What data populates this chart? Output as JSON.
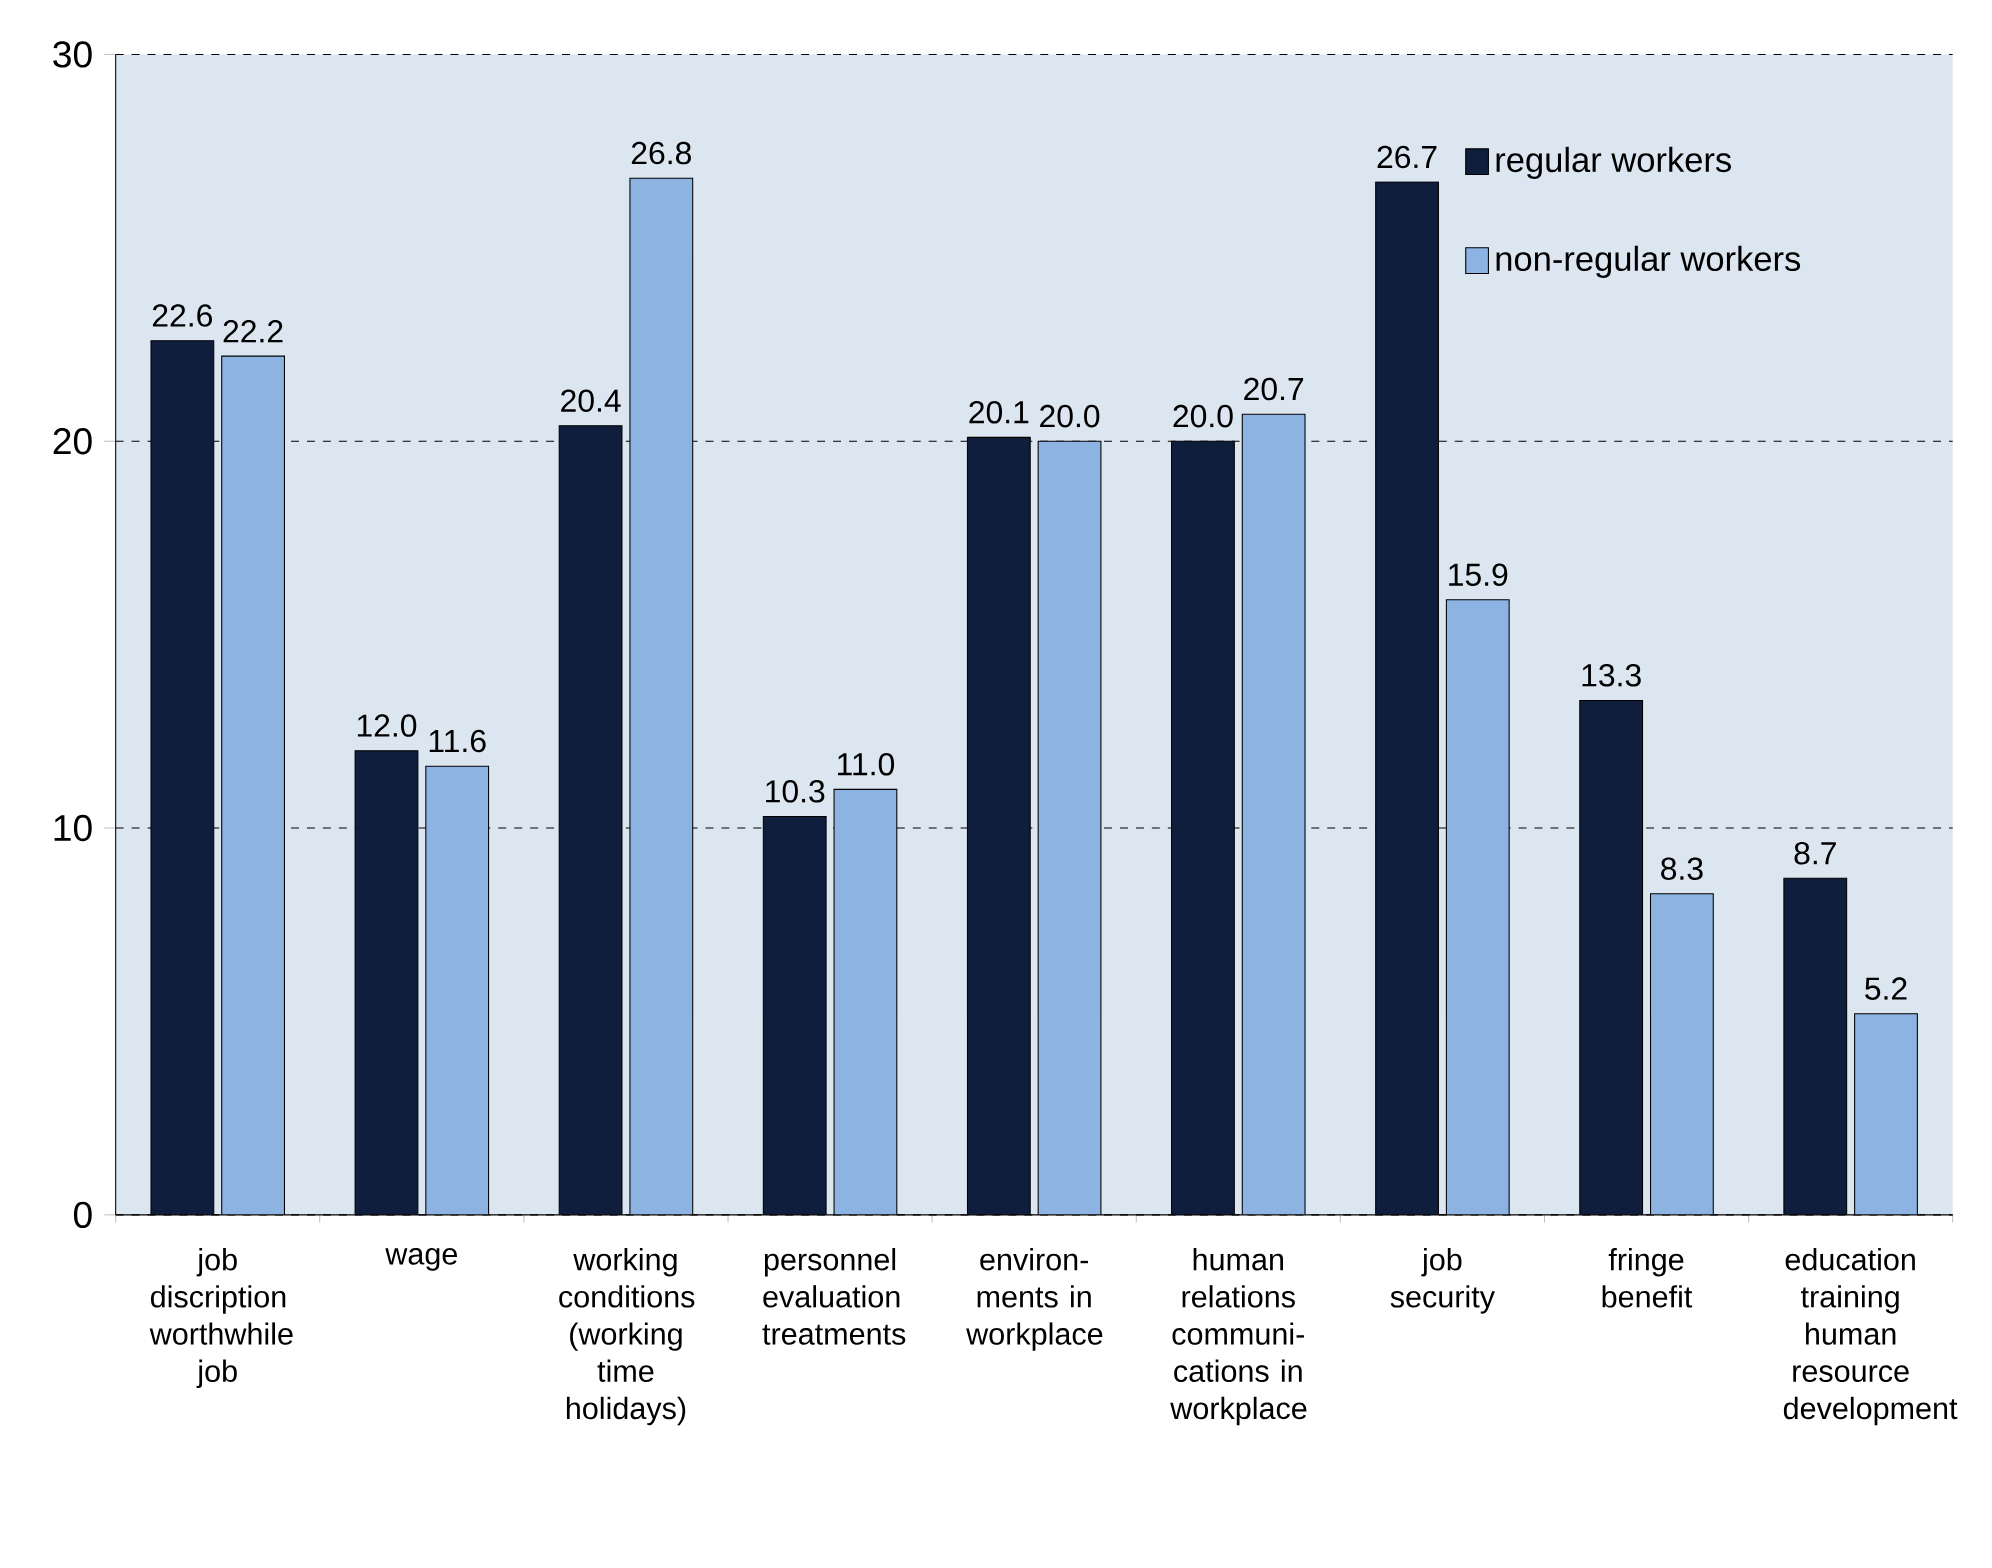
{
  "chart_data": {
    "type": "bar",
    "categories": [
      "job discription worthwhile job",
      "wage",
      "working conditions (working time holidays)",
      "personnel evaluation treatments",
      "environ-ments in workplace",
      "human relations communi-cations in workplace",
      "job security",
      "fringe benefit",
      "education training human resource development"
    ],
    "series": [
      {
        "name": "regular workers",
        "color": "#0f1e3c",
        "values": [
          22.6,
          12.0,
          20.4,
          10.3,
          20.1,
          20.0,
          26.7,
          13.3,
          8.7
        ],
        "value_labels": [
          "22.6",
          "12.0",
          "20.4",
          "10.3",
          "20.1",
          "20.0",
          "26.7",
          "13.3",
          "8.7"
        ]
      },
      {
        "name": "non-regular workers",
        "color": "#8db3e2",
        "values": [
          22.2,
          11.6,
          26.8,
          11.0,
          20.0,
          20.7,
          15.9,
          8.3,
          5.2
        ],
        "value_labels": [
          "22.2",
          "11.6",
          "26.8",
          "11.0",
          "20.0",
          "20.7",
          "15.9",
          "8.3",
          "5.2"
        ]
      }
    ],
    "ylim": [
      0,
      30
    ],
    "yticks": [
      0,
      10,
      20,
      30
    ],
    "grid": "y",
    "legend": "top right"
  }
}
